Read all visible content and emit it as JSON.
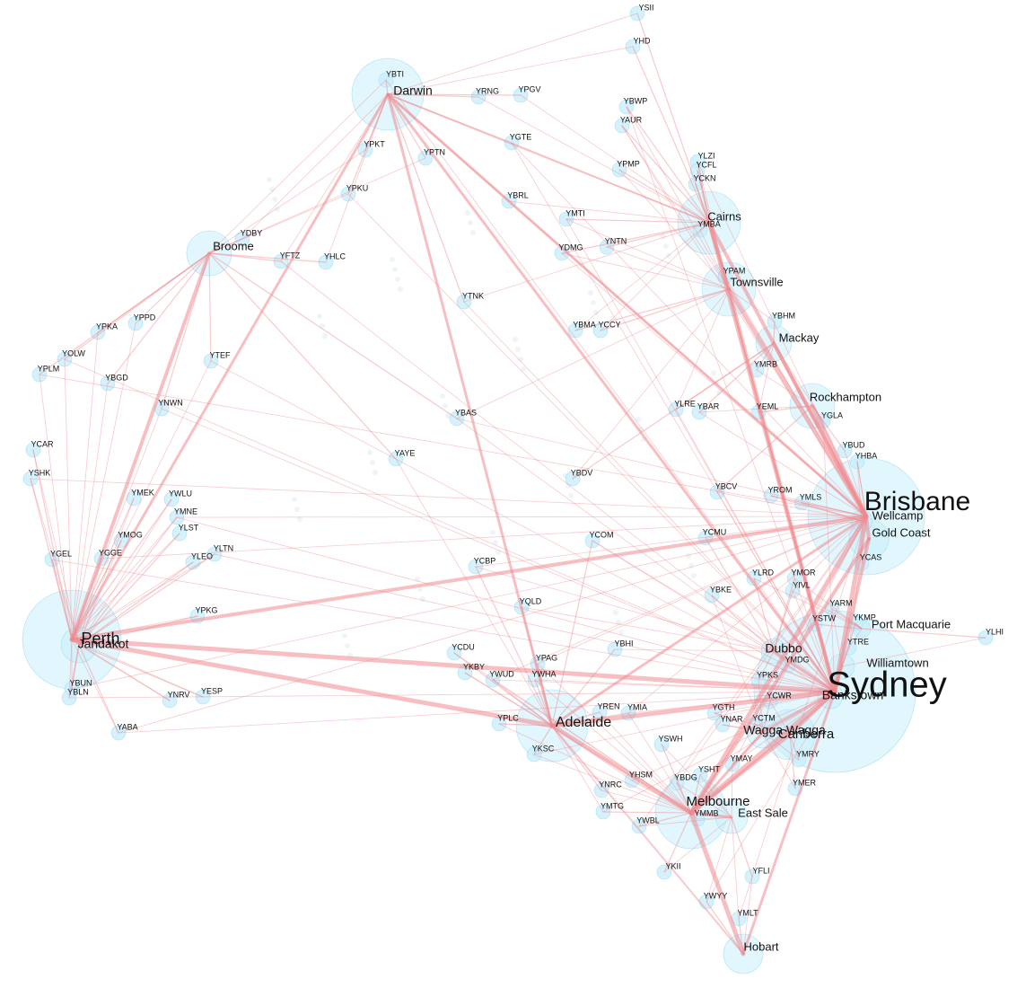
{
  "nodes": [
    {
      "label": "Sydney"
    },
    {
      "label": "Brisbane"
    },
    {
      "label": "Perth"
    },
    {
      "label": "Melbourne"
    },
    {
      "label": "Adelaide"
    },
    {
      "label": "Darwin"
    },
    {
      "label": "Cairns"
    },
    {
      "label": "Townsville"
    },
    {
      "label": "Mackay"
    },
    {
      "label": "Rockhampton"
    },
    {
      "label": "Gold Coast"
    },
    {
      "label": "Canberra"
    },
    {
      "label": "Wagga Wagga"
    },
    {
      "label": "Dubbo"
    },
    {
      "label": "Williamtown"
    },
    {
      "label": "Port Macquarie"
    },
    {
      "label": "Bankstown"
    },
    {
      "label": "Hobart"
    },
    {
      "label": "East Sale"
    },
    {
      "label": "Broome"
    },
    {
      "label": "Jandakot"
    },
    {
      "label": "Wellcamp"
    },
    {
      "label": "YSII"
    },
    {
      "label": "YHD"
    },
    {
      "label": "YBWP"
    },
    {
      "label": "YAUR"
    },
    {
      "label": "YPMP"
    },
    {
      "label": "YMTI"
    },
    {
      "label": "YNTN"
    },
    {
      "label": "YDMG"
    },
    {
      "label": "YBTI"
    },
    {
      "label": "YRNG"
    },
    {
      "label": "YPGV"
    },
    {
      "label": "YGTE"
    },
    {
      "label": "YPKT"
    },
    {
      "label": "YPTN"
    },
    {
      "label": "YPKU"
    },
    {
      "label": "YBRL"
    },
    {
      "label": "YDBY"
    },
    {
      "label": "YFTZ"
    },
    {
      "label": "YHLC"
    },
    {
      "label": "YLZI"
    },
    {
      "label": "YCFL"
    },
    {
      "label": "YCKN"
    },
    {
      "label": "YMBA"
    },
    {
      "label": "YPAM"
    },
    {
      "label": "YBHM"
    },
    {
      "label": "YMRB"
    },
    {
      "label": "YLRE"
    },
    {
      "label": "YBAR"
    },
    {
      "label": "YEML"
    },
    {
      "label": "YGLA"
    },
    {
      "label": "YBUD"
    },
    {
      "label": "YHBA"
    },
    {
      "label": "YTNK"
    },
    {
      "label": "YBMA"
    },
    {
      "label": "YCCY"
    },
    {
      "label": "YBAS"
    },
    {
      "label": "YAYE"
    },
    {
      "label": "YBDV"
    },
    {
      "label": "YBCV"
    },
    {
      "label": "YROM"
    },
    {
      "label": "YMLS"
    },
    {
      "label": "YCOM"
    },
    {
      "label": "YCMU"
    },
    {
      "label": "YCBP"
    },
    {
      "label": "YLRD"
    },
    {
      "label": "YMOR"
    },
    {
      "label": "YBKE"
    },
    {
      "label": "YIVL"
    },
    {
      "label": "YARM"
    },
    {
      "label": "YSTW"
    },
    {
      "label": "YKMP"
    },
    {
      "label": "YTRE"
    },
    {
      "label": "YBHI"
    },
    {
      "label": "YMDG"
    },
    {
      "label": "YPKS"
    },
    {
      "label": "YCWR"
    },
    {
      "label": "YGTH"
    },
    {
      "label": "YNAR"
    },
    {
      "label": "YCTM"
    },
    {
      "label": "YMAY"
    },
    {
      "label": "YMRY"
    },
    {
      "label": "YMER"
    },
    {
      "label": "YSHT"
    },
    {
      "label": "YBDG"
    },
    {
      "label": "YSWH"
    },
    {
      "label": "YHSM"
    },
    {
      "label": "YMMB"
    },
    {
      "label": "YWBL"
    },
    {
      "label": "YMTG"
    },
    {
      "label": "YNRC"
    },
    {
      "label": "YREN"
    },
    {
      "label": "YMIA"
    },
    {
      "label": "YKII"
    },
    {
      "label": "YFLI"
    },
    {
      "label": "YWYY"
    },
    {
      "label": "YMLT"
    },
    {
      "label": "YPLC"
    },
    {
      "label": "YKSC"
    },
    {
      "label": "YQLD"
    },
    {
      "label": "YPAG"
    },
    {
      "label": "YWHA"
    },
    {
      "label": "YCDU"
    },
    {
      "label": "YKBY"
    },
    {
      "label": "YWUD"
    },
    {
      "label": "YPPD"
    },
    {
      "label": "YPKA"
    },
    {
      "label": "YOLW"
    },
    {
      "label": "YPLM"
    },
    {
      "label": "YBGD"
    },
    {
      "label": "YTEF"
    },
    {
      "label": "YCAR"
    },
    {
      "label": "YSHK"
    },
    {
      "label": "YNWN"
    },
    {
      "label": "YMEK"
    },
    {
      "label": "YWLU"
    },
    {
      "label": "YMNE"
    },
    {
      "label": "YLST"
    },
    {
      "label": "YMOG"
    },
    {
      "label": "YGEL"
    },
    {
      "label": "YGGE"
    },
    {
      "label": "YLEO"
    },
    {
      "label": "YLTN"
    },
    {
      "label": "YPKG"
    },
    {
      "label": "YBUN"
    },
    {
      "label": "YBLN"
    },
    {
      "label": "YNRV"
    },
    {
      "label": "YESP"
    },
    {
      "label": "YABA"
    },
    {
      "label": "YLHI"
    },
    {
      "label": "YCAS"
    }
  ]
}
